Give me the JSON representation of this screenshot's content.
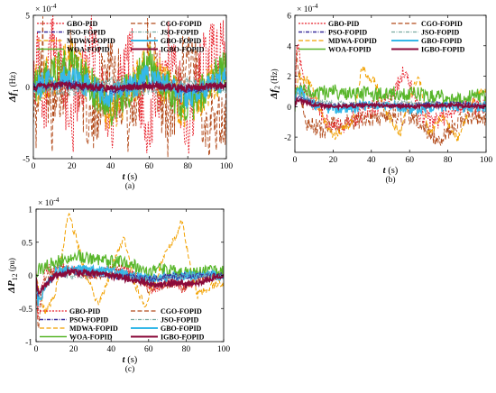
{
  "figure": {
    "colors": {
      "GBO-PID": "#e8202a",
      "CGO-FOPID": "#b24a1a",
      "PSO-FOPID": "#3a2f9c",
      "JSO-FOPID": "#7aa9a0",
      "MDWA-FOPID": "#f2a100",
      "GBO-FOPID": "#35b8e8",
      "WOA-FOPID": "#58b62a",
      "IGBO-FOPID": "#8a0a3a"
    }
  },
  "chart_data": [
    {
      "type": "line",
      "panel": "(a)",
      "xlabel": "t (s)",
      "ylabel": "Δf1 (Hz)",
      "exponent": "× 10^-4",
      "xlim": [
        0,
        100
      ],
      "ylim": [
        -5,
        5
      ],
      "xticks": [
        "0",
        "20",
        "40",
        "60",
        "80",
        "100"
      ],
      "yticks": [
        "-5",
        "0",
        "5"
      ],
      "legend": [
        "GBO-PID",
        "CGO-FOPID",
        "PSO-FOPID",
        "JSO-FOPID",
        "MDWA-FOPID",
        "GBO-FOPID",
        "WOA-FOPID",
        "IGBO-FOPID"
      ],
      "legend_position": "top",
      "series": [
        {
          "name": "GBO-PID",
          "x": [
            0,
            2,
            5,
            10,
            20,
            30,
            40,
            50,
            60,
            70,
            80,
            90,
            100
          ],
          "y": [
            0,
            2.5,
            -3,
            2.8,
            -2.6,
            3,
            -2.4,
            2.2,
            -3,
            2.6,
            -2.8,
            2.4,
            2.2
          ]
        },
        {
          "name": "CGO-FOPID",
          "x": [
            0,
            2,
            5,
            10,
            20,
            30,
            40,
            50,
            60,
            70,
            80,
            90,
            100
          ],
          "y": [
            0,
            -2.8,
            3,
            -2.5,
            2.7,
            -2.9,
            2.5,
            -2.6,
            2.8,
            -2.6,
            2.7,
            -2.5,
            -2.2
          ]
        },
        {
          "name": "PSO-FOPID",
          "x": [
            0,
            20,
            40,
            60,
            80,
            100
          ],
          "y": [
            0,
            0.2,
            -0.2,
            0.2,
            -0.2,
            0.1
          ]
        },
        {
          "name": "JSO-FOPID",
          "x": [
            0,
            20,
            40,
            60,
            80,
            100
          ],
          "y": [
            0,
            -0.3,
            0.3,
            -0.3,
            0.3,
            -0.2
          ]
        },
        {
          "name": "MDWA-FOPID",
          "x": [
            0,
            20,
            40,
            60,
            80,
            100
          ],
          "y": [
            0,
            1.8,
            -1.8,
            1.6,
            -1.8,
            1.5
          ]
        },
        {
          "name": "GBO-FOPID",
          "x": [
            0,
            20,
            40,
            60,
            80,
            100
          ],
          "y": [
            0,
            0.7,
            -0.7,
            0.7,
            -0.6,
            0.6
          ]
        },
        {
          "name": "WOA-FOPID",
          "x": [
            0,
            20,
            40,
            60,
            80,
            100
          ],
          "y": [
            0,
            1.6,
            -1.5,
            1.5,
            -1.5,
            1.4
          ]
        },
        {
          "name": "IGBO-FOPID",
          "x": [
            0,
            20,
            40,
            60,
            80,
            100
          ],
          "y": [
            0,
            0.1,
            -0.1,
            0.1,
            -0.1,
            0.1
          ]
        }
      ]
    },
    {
      "type": "line",
      "panel": "(b)",
      "xlabel": "t (s)",
      "ylabel": "Δf2 (Hz)",
      "exponent": "× 10^-4",
      "xlim": [
        0,
        100
      ],
      "ylim": [
        -3,
        6
      ],
      "xticks": [
        "0",
        "20",
        "40",
        "60",
        "80",
        "100"
      ],
      "yticks": [
        "-2",
        "0",
        "2",
        "4",
        "6"
      ],
      "legend": [
        "GBO-PID",
        "CGO-FOPID",
        "PSO-FOPID",
        "JSO-FOPID",
        "MDWA-FOPID",
        "GBO-FOPID",
        "WOA-FOPID",
        "IGBO-FOPID"
      ],
      "legend_position": "top",
      "series": [
        {
          "name": "GBO-PID",
          "x": [
            0,
            1,
            5,
            15,
            20,
            35,
            50,
            58,
            65,
            75,
            85,
            100
          ],
          "y": [
            0,
            4.5,
            1,
            -0.5,
            -1.5,
            -0.5,
            0.5,
            2.5,
            -0.5,
            -1,
            0,
            0
          ]
        },
        {
          "name": "CGO-FOPID",
          "x": [
            0,
            1,
            5,
            15,
            20,
            40,
            60,
            75,
            90,
            100
          ],
          "y": [
            0,
            3.5,
            -1,
            -1.6,
            -1.2,
            -0.8,
            -0.6,
            -2.1,
            -0.6,
            -0.8
          ]
        },
        {
          "name": "PSO-FOPID",
          "x": [
            0,
            1,
            10,
            20,
            40,
            60,
            80,
            100
          ],
          "y": [
            0,
            0.6,
            0.2,
            0.1,
            0.1,
            0.1,
            0.2,
            0.1
          ]
        },
        {
          "name": "JSO-FOPID",
          "x": [
            0,
            1,
            10,
            20,
            40,
            60,
            80,
            100
          ],
          "y": [
            0,
            0.8,
            0.3,
            0.2,
            0.1,
            0.2,
            0.1,
            0.1
          ]
        },
        {
          "name": "MDWA-FOPID",
          "x": [
            0,
            2,
            8,
            14,
            20,
            30,
            35,
            42,
            48,
            55,
            60,
            65,
            70,
            77,
            85,
            95,
            100
          ],
          "y": [
            0,
            2,
            1.6,
            -0.5,
            -2,
            -1,
            2.5,
            1.6,
            -0.5,
            -1.8,
            0.6,
            2,
            -1.8,
            -0.6,
            -2.2,
            1,
            1
          ]
        },
        {
          "name": "GBO-FOPID",
          "x": [
            0,
            1,
            10,
            20,
            40,
            60,
            80,
            100
          ],
          "y": [
            0,
            1.2,
            0.1,
            -0.2,
            0.1,
            -0.1,
            0,
            0
          ]
        },
        {
          "name": "WOA-FOPID",
          "x": [
            0,
            1,
            10,
            20,
            40,
            60,
            80,
            100
          ],
          "y": [
            0,
            1.4,
            0.8,
            1,
            0.8,
            0.9,
            0.6,
            0.7
          ]
        },
        {
          "name": "IGBO-FOPID",
          "x": [
            0,
            1,
            10,
            20,
            40,
            60,
            80,
            100
          ],
          "y": [
            0,
            0.5,
            0.1,
            0,
            0.1,
            0,
            0.1,
            0
          ]
        }
      ]
    },
    {
      "type": "line",
      "panel": "(c)",
      "xlabel": "t (s)",
      "ylabel": "ΔP12 (pu)",
      "exponent": "× 10^-4",
      "xlim": [
        0,
        100
      ],
      "ylim": [
        -1,
        1
      ],
      "xticks": [
        "0",
        "20",
        "40",
        "60",
        "80",
        "100"
      ],
      "yticks": [
        "-1",
        "-0.5",
        "0",
        "0.5",
        "1"
      ],
      "legend": [
        "GBO-PID",
        "CGO-FOPID",
        "PSO-FOPID",
        "JSO-FOPID",
        "MDWA-FOPID",
        "GBO-FOPID",
        "WOA-FOPID",
        "IGBO-FOPID"
      ],
      "legend_position": "bottom",
      "series": [
        {
          "name": "GBO-PID",
          "x": [
            0,
            1,
            5,
            15,
            30,
            45,
            58,
            60,
            75,
            78,
            90,
            100
          ],
          "y": [
            0,
            -0.6,
            0.1,
            0.1,
            0,
            0.1,
            -0.1,
            -0.2,
            -0.1,
            -0.2,
            0,
            0
          ]
        },
        {
          "name": "CGO-FOPID",
          "x": [
            0,
            1,
            5,
            15,
            30,
            45,
            58,
            60,
            75,
            78,
            90,
            100
          ],
          "y": [
            0,
            -0.8,
            0,
            0.1,
            0,
            0.1,
            -0.1,
            -0.2,
            -0.1,
            -0.2,
            0,
            0
          ]
        },
        {
          "name": "PSO-FOPID",
          "x": [
            0,
            1,
            10,
            20,
            40,
            60,
            80,
            100
          ],
          "y": [
            0,
            -0.3,
            0,
            0.05,
            0,
            -0.05,
            0,
            0
          ]
        },
        {
          "name": "JSO-FOPID",
          "x": [
            0,
            1,
            10,
            20,
            40,
            60,
            80,
            100
          ],
          "y": [
            0,
            -0.3,
            0,
            0,
            0,
            -0.05,
            0,
            0
          ]
        },
        {
          "name": "MDWA-FOPID",
          "x": [
            0,
            2,
            5,
            10,
            14,
            17,
            21,
            26,
            33,
            38,
            44,
            47,
            52,
            58,
            64,
            70,
            75,
            78,
            81,
            86,
            94,
            100
          ],
          "y": [
            0,
            -0.3,
            -0.55,
            -0.3,
            0.35,
            0.95,
            0.6,
            0.05,
            -0.45,
            -0.1,
            0.4,
            0.55,
            -0.1,
            -0.45,
            -0.05,
            0.4,
            0.6,
            0.85,
            0.3,
            -0.3,
            -0.15,
            -0.1
          ]
        },
        {
          "name": "GBO-FOPID",
          "x": [
            0,
            1,
            10,
            20,
            40,
            60,
            80,
            100
          ],
          "y": [
            0,
            -0.4,
            0.05,
            0.1,
            0.05,
            -0.05,
            0,
            0
          ]
        },
        {
          "name": "WOA-FOPID",
          "x": [
            0,
            2,
            10,
            20,
            30,
            40,
            50,
            58,
            65,
            75,
            85,
            100
          ],
          "y": [
            0,
            0.1,
            0.2,
            0.3,
            0.25,
            0.2,
            0.2,
            0.05,
            0.1,
            0.05,
            0.05,
            0.05
          ]
        },
        {
          "name": "IGBO-FOPID",
          "x": [
            0,
            1,
            10,
            20,
            40,
            58,
            60,
            78,
            80,
            100
          ],
          "y": [
            0,
            -0.25,
            0,
            0.05,
            0,
            -0.1,
            -0.15,
            -0.1,
            -0.15,
            0
          ]
        }
      ]
    }
  ]
}
